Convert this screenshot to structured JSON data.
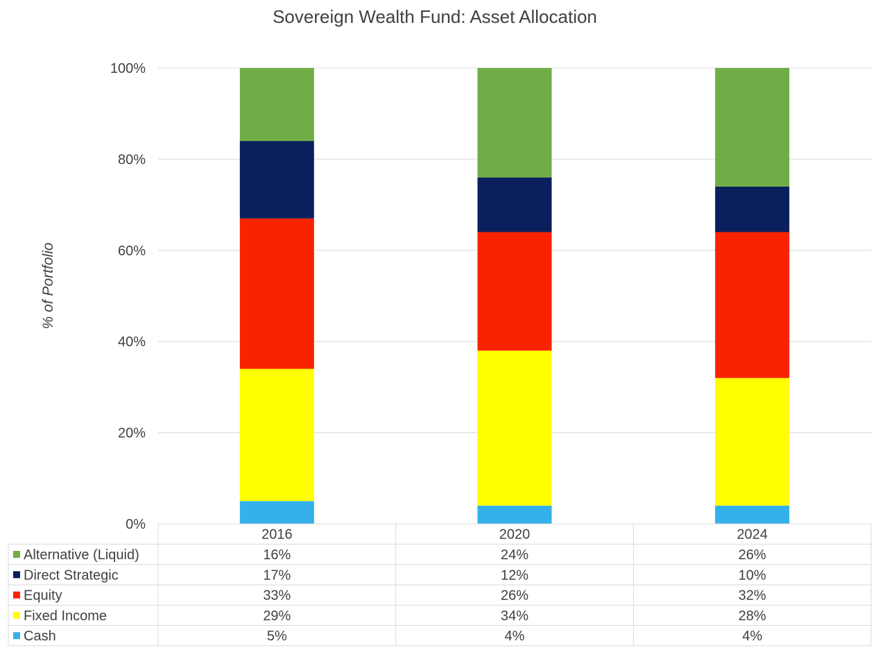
{
  "chart_data": {
    "type": "bar",
    "stacked": true,
    "percent_stacked": true,
    "title": "Sovereign Wealth Fund: Asset Allocation",
    "ylabel": "% of Portfolio",
    "xlabel": "",
    "ylim": [
      0,
      100
    ],
    "yticks": [
      "0%",
      "20%",
      "40%",
      "60%",
      "80%",
      "100%"
    ],
    "ytick_values": [
      0,
      20,
      40,
      60,
      80,
      100
    ],
    "grid": true,
    "legend": "data-table",
    "categories": [
      "2016",
      "2020",
      "2024"
    ],
    "series": [
      {
        "name": "Alternative (Liquid)",
        "color": "#70ad47",
        "values": [
          16,
          24,
          26
        ],
        "labels": [
          "16%",
          "24%",
          "26%"
        ]
      },
      {
        "name": "Direct Strategic",
        "color": "#0b1f5c",
        "values": [
          17,
          12,
          10
        ],
        "labels": [
          "17%",
          "12%",
          "10%"
        ]
      },
      {
        "name": "Equity",
        "color": "#fa2300",
        "values": [
          33,
          26,
          32
        ],
        "labels": [
          "33%",
          "26%",
          "32%"
        ]
      },
      {
        "name": "Fixed Income",
        "color": "#ffff00",
        "values": [
          29,
          34,
          28
        ],
        "labels": [
          "29%",
          "34%",
          "28%"
        ]
      },
      {
        "name": "Cash",
        "color": "#34b1ea",
        "values": [
          5,
          4,
          4
        ],
        "labels": [
          "5%",
          "4%",
          "4%"
        ]
      }
    ],
    "colors": {
      "grid": "#d9d9d9",
      "text": "#404040",
      "table_border": "#d9d9d9"
    }
  }
}
